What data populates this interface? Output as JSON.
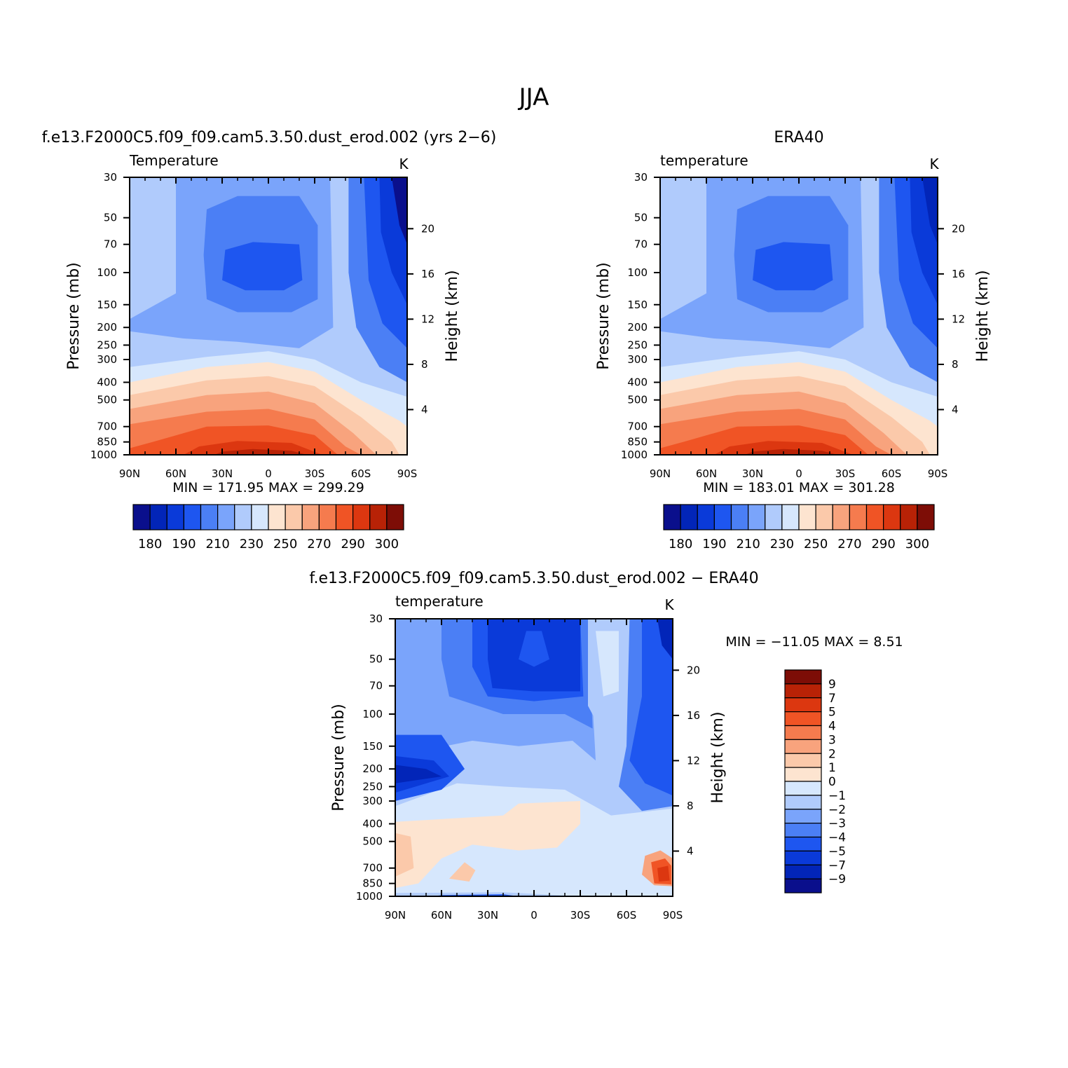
{
  "title": "JJA",
  "colors": {
    "temp_palette": [
      "#0a0f8c",
      "#0225b8",
      "#0a3ad9",
      "#1e56f0",
      "#4b7ff5",
      "#7aa4fb",
      "#b0cbfc",
      "#d6e7fd",
      "#fde4d0",
      "#fbc9aa",
      "#f8a37d",
      "#f57b4e",
      "#f05425",
      "#dc3710",
      "#b82206",
      "#7d0d06"
    ],
    "diff_palette": [
      "#7d0d06",
      "#b82206",
      "#dc3710",
      "#f05425",
      "#f57b4e",
      "#f8a37d",
      "#fbc9aa",
      "#fde4d0",
      "#d6e7fd",
      "#b0cbfc",
      "#7aa4fb",
      "#4b7ff5",
      "#1e56f0",
      "#0a3ad9",
      "#0225b8",
      "#0a0f8c"
    ]
  },
  "panels": [
    {
      "id": "model",
      "case_title": "f.e13.F2000C5.f09_f09.cam5.3.50.dust_erod.002 (yrs 2−6)",
      "variable": "Temperature",
      "units": "K",
      "ylabel": "Pressure (mb)",
      "y2label": "Height (km)",
      "min_max": "MIN = 171.95   MAX = 299.29"
    },
    {
      "id": "obs",
      "case_title": "ERA40",
      "variable": "temperature",
      "units": "K",
      "ylabel": "Pressure (mb)",
      "y2label": "Height (km)",
      "min_max": "MIN = 183.01   MAX = 301.28"
    },
    {
      "id": "diff",
      "case_title": "f.e13.F2000C5.f09_f09.cam5.3.50.dust_erod.002 − ERA40",
      "variable": "temperature",
      "units": "K",
      "ylabel": "Pressure (mb)",
      "y2label": "Height (km)",
      "min_max": "MIN = −11.05   MAX =    8.51"
    }
  ],
  "chart_data": [
    {
      "type": "contour",
      "title": "f.e13.F2000C5.f09_f09.cam5.3.50.dust_erod.002 (yrs 2−6) — Temperature (K)",
      "x_ticks": [
        "90N",
        "60N",
        "30N",
        "0",
        "30S",
        "60S",
        "90S"
      ],
      "x_values": [
        90,
        60,
        30,
        0,
        -30,
        -60,
        -90
      ],
      "y_ticks": [
        "30",
        "50",
        "70",
        "100",
        "150",
        "200",
        "250",
        "300",
        "400",
        "500",
        "700",
        "850",
        "1000"
      ],
      "y_values": [
        30,
        50,
        70,
        100,
        150,
        200,
        250,
        300,
        400,
        500,
        700,
        850,
        1000
      ],
      "y2_ticks": [
        "4",
        "8",
        "12",
        "16",
        "20"
      ],
      "y2_values": [
        4,
        8,
        12,
        16,
        20
      ],
      "xlabel": "",
      "ylabel": "Pressure (mb)",
      "y2label": "Height (km)",
      "ylim": [
        1000,
        30
      ],
      "colorbar_labels": [
        "180",
        "190",
        "210",
        "230",
        "250",
        "270",
        "290",
        "300"
      ],
      "colorbar_levels": [
        180,
        185,
        190,
        200,
        210,
        220,
        230,
        240,
        250,
        260,
        270,
        280,
        290,
        295,
        300
      ],
      "min": 171.95,
      "max": 299.29
    },
    {
      "type": "contour",
      "title": "ERA40 — temperature (K)",
      "x_ticks": [
        "90N",
        "60N",
        "30N",
        "0",
        "30S",
        "60S",
        "90S"
      ],
      "x_values": [
        90,
        60,
        30,
        0,
        -30,
        -60,
        -90
      ],
      "y_ticks": [
        "30",
        "50",
        "70",
        "100",
        "150",
        "200",
        "250",
        "300",
        "400",
        "500",
        "700",
        "850",
        "1000"
      ],
      "y_values": [
        30,
        50,
        70,
        100,
        150,
        200,
        250,
        300,
        400,
        500,
        700,
        850,
        1000
      ],
      "y2_ticks": [
        "4",
        "8",
        "12",
        "16",
        "20"
      ],
      "y2_values": [
        4,
        8,
        12,
        16,
        20
      ],
      "xlabel": "",
      "ylabel": "Pressure (mb)",
      "y2label": "Height (km)",
      "ylim": [
        1000,
        30
      ],
      "colorbar_labels": [
        "180",
        "190",
        "210",
        "230",
        "250",
        "270",
        "290",
        "300"
      ],
      "colorbar_levels": [
        180,
        185,
        190,
        200,
        210,
        220,
        230,
        240,
        250,
        260,
        270,
        280,
        290,
        295,
        300
      ],
      "min": 183.01,
      "max": 301.28
    },
    {
      "type": "contour",
      "title": "f.e13.F2000C5.f09_f09.cam5.3.50.dust_erod.002 − ERA40 — temperature (K)",
      "x_ticks": [
        "90N",
        "60N",
        "30N",
        "0",
        "30S",
        "60S",
        "90S"
      ],
      "x_values": [
        90,
        60,
        30,
        0,
        -30,
        -60,
        -90
      ],
      "y_ticks": [
        "30",
        "50",
        "70",
        "100",
        "150",
        "200",
        "250",
        "300",
        "400",
        "500",
        "700",
        "850",
        "1000"
      ],
      "y_values": [
        30,
        50,
        70,
        100,
        150,
        200,
        250,
        300,
        400,
        500,
        700,
        850,
        1000
      ],
      "y2_ticks": [
        "4",
        "8",
        "12",
        "16",
        "20"
      ],
      "y2_values": [
        4,
        8,
        12,
        16,
        20
      ],
      "xlabel": "",
      "ylabel": "Pressure (mb)",
      "y2label": "Height (km)",
      "ylim": [
        1000,
        30
      ],
      "colorbar_labels": [
        "9",
        "7",
        "5",
        "4",
        "3",
        "2",
        "1",
        "0",
        "−1",
        "−2",
        "−3",
        "−4",
        "−5",
        "−7",
        "−9"
      ],
      "colorbar_levels": [
        9,
        7,
        5,
        4,
        3,
        2,
        1,
        0,
        -1,
        -2,
        -3,
        -4,
        -5,
        -7,
        -9
      ],
      "min": -11.05,
      "max": 8.51
    }
  ]
}
